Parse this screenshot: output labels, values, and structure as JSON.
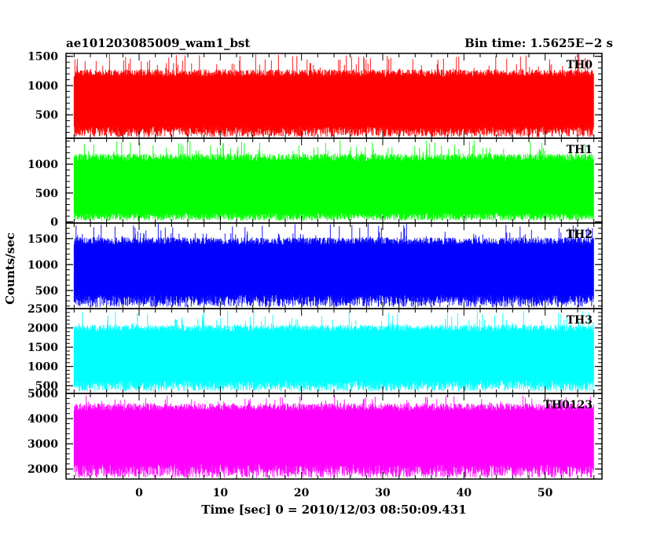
{
  "header": {
    "title": "ae101203085009_wam1_bst",
    "bin_time": "Bin time: 1.5625E−2 s"
  },
  "chart_data": {
    "type": "line",
    "xlabel": "Time [sec] 0 = 2010/12/03 08:50:09.431",
    "ylabel": "Counts/sec",
    "xlim": [
      -9,
      57
    ],
    "data_x_range": [
      -8,
      56
    ],
    "x_ticks": [
      0,
      10,
      20,
      30,
      40,
      50
    ],
    "x_tick_labels": [
      "0",
      "10",
      "20",
      "30",
      "40",
      "50"
    ],
    "grid": false,
    "panels": [
      {
        "name": "TH0",
        "color": "#ff0000",
        "ylim": [
          100,
          1550
        ],
        "ticks": [
          500,
          1000,
          1500
        ],
        "tick_labels": [
          "500",
          "1000",
          "1500"
        ],
        "typical_range": [
          300,
          1150
        ],
        "peak_range": [
          120,
          1550
        ]
      },
      {
        "name": "TH1",
        "color": "#00ff00",
        "ylim": [
          -20,
          1450
        ],
        "ticks": [
          0,
          500,
          1000
        ],
        "tick_labels": [
          "0",
          "500",
          "1000"
        ],
        "typical_range": [
          160,
          1050
        ],
        "peak_range": [
          20,
          1420
        ]
      },
      {
        "name": "TH2",
        "color": "#0000ff",
        "ylim": [
          150,
          1800
        ],
        "ticks": [
          500,
          1000,
          1500
        ],
        "tick_labels": [
          "500",
          "1000",
          "1500"
        ],
        "typical_range": [
          420,
          1380
        ],
        "peak_range": [
          180,
          1800
        ]
      },
      {
        "name": "TH3",
        "color": "#00ffff",
        "ylim": [
          300,
          2500
        ],
        "ticks": [
          500,
          1000,
          1500,
          2000,
          2500
        ],
        "tick_labels": [
          "500",
          "1000",
          "1500",
          "2000",
          "2500"
        ],
        "typical_range": [
          650,
          1900
        ],
        "peak_range": [
          350,
          2450
        ]
      },
      {
        "name": "TH0123",
        "color": "#ff00ff",
        "ylim": [
          1600,
          5000
        ],
        "ticks": [
          2000,
          3000,
          4000,
          5000
        ],
        "tick_labels": [
          "2000",
          "3000",
          "4000",
          "5000"
        ],
        "typical_range": [
          2200,
          4300
        ],
        "peak_range": [
          1650,
          4950
        ]
      }
    ]
  }
}
